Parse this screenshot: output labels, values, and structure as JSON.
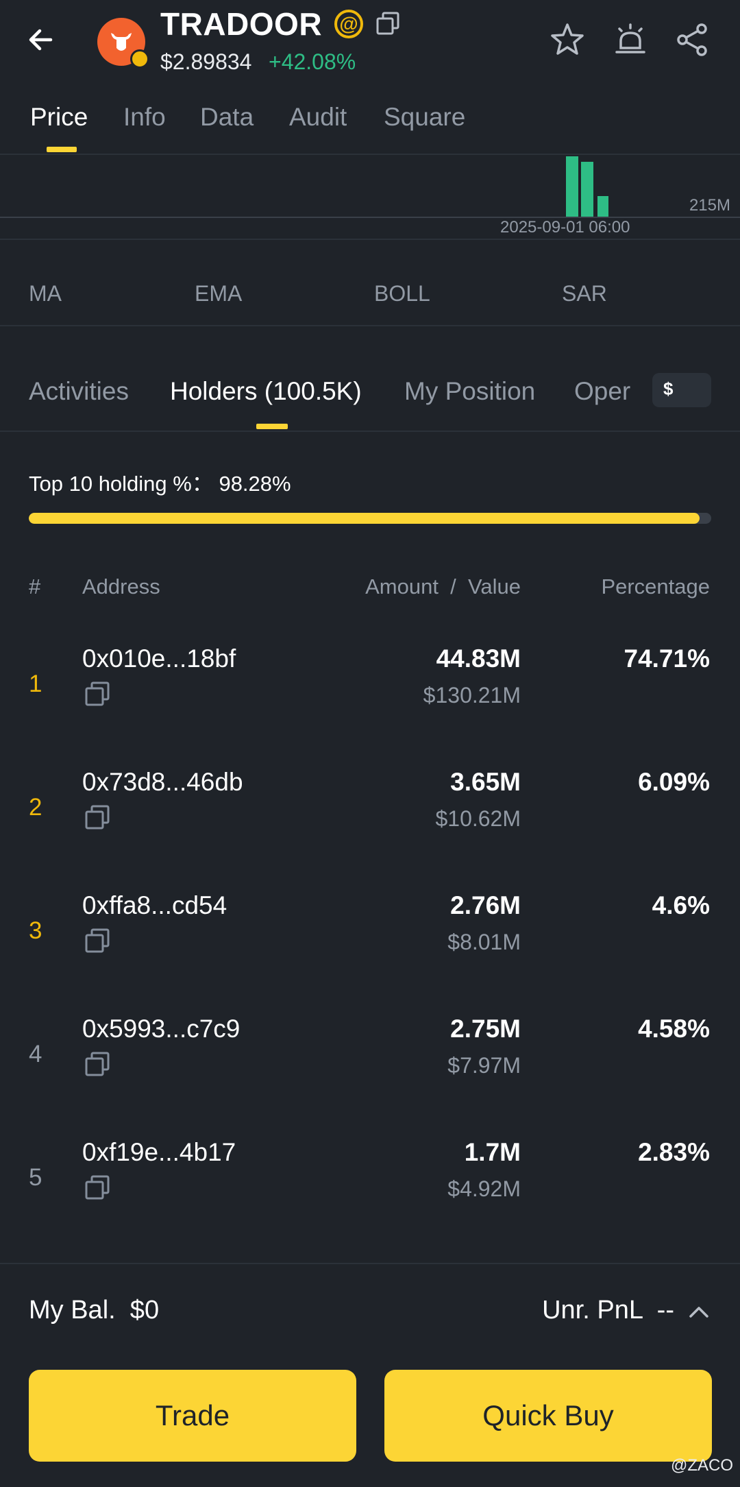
{
  "header": {
    "token_name": "TRADOOR",
    "at_symbol": "@",
    "price": "$2.89834",
    "change": "+42.08%"
  },
  "tabs": [
    {
      "label": "Price"
    },
    {
      "label": "Info"
    },
    {
      "label": "Data"
    },
    {
      "label": "Audit"
    },
    {
      "label": "Square"
    }
  ],
  "chart": {
    "volume_label": "215M",
    "date_label": "2025-09-01 06:00"
  },
  "indicators": [
    "MA",
    "EMA",
    "BOLL",
    "SAR"
  ],
  "subtabs": [
    {
      "label": "Activities"
    },
    {
      "label": "Holders (100.5K)"
    },
    {
      "label": "My Position"
    },
    {
      "label": "Oper"
    }
  ],
  "currency_symbol": "$",
  "top10": {
    "label": "Top 10 holding %： 98.28%",
    "fraction": 0.9828
  },
  "columns": {
    "rank": "#",
    "address": "Address",
    "amount_value": "Amount  /  Value",
    "percentage": "Percentage"
  },
  "holders": [
    {
      "rank": "1",
      "address": "0x010e...18bf",
      "amount": "44.83M",
      "value": "$130.21M",
      "pct": "74.71%"
    },
    {
      "rank": "2",
      "address": "0x73d8...46db",
      "amount": "3.65M",
      "value": "$10.62M",
      "pct": "6.09%"
    },
    {
      "rank": "3",
      "address": "0xffa8...cd54",
      "amount": "2.76M",
      "value": "$8.01M",
      "pct": "4.6%"
    },
    {
      "rank": "4",
      "address": "0x5993...c7c9",
      "amount": "2.75M",
      "value": "$7.97M",
      "pct": "4.58%"
    },
    {
      "rank": "5",
      "address": "0xf19e...4b17",
      "amount": "1.7M",
      "value": "$4.92M",
      "pct": "2.83%"
    }
  ],
  "bottom": {
    "my_balance": "My Bal.  $0",
    "unrealized_pnl": "Unr. PnL  --",
    "trade_label": "Trade",
    "quick_buy_label": "Quick Buy"
  },
  "watermark": "@ZACO",
  "colors": {
    "background": "#1f2329",
    "accent": "#fcd535",
    "positive": "#2ebd85",
    "muted": "#929aa5",
    "top_rank": "#f0b90b"
  }
}
